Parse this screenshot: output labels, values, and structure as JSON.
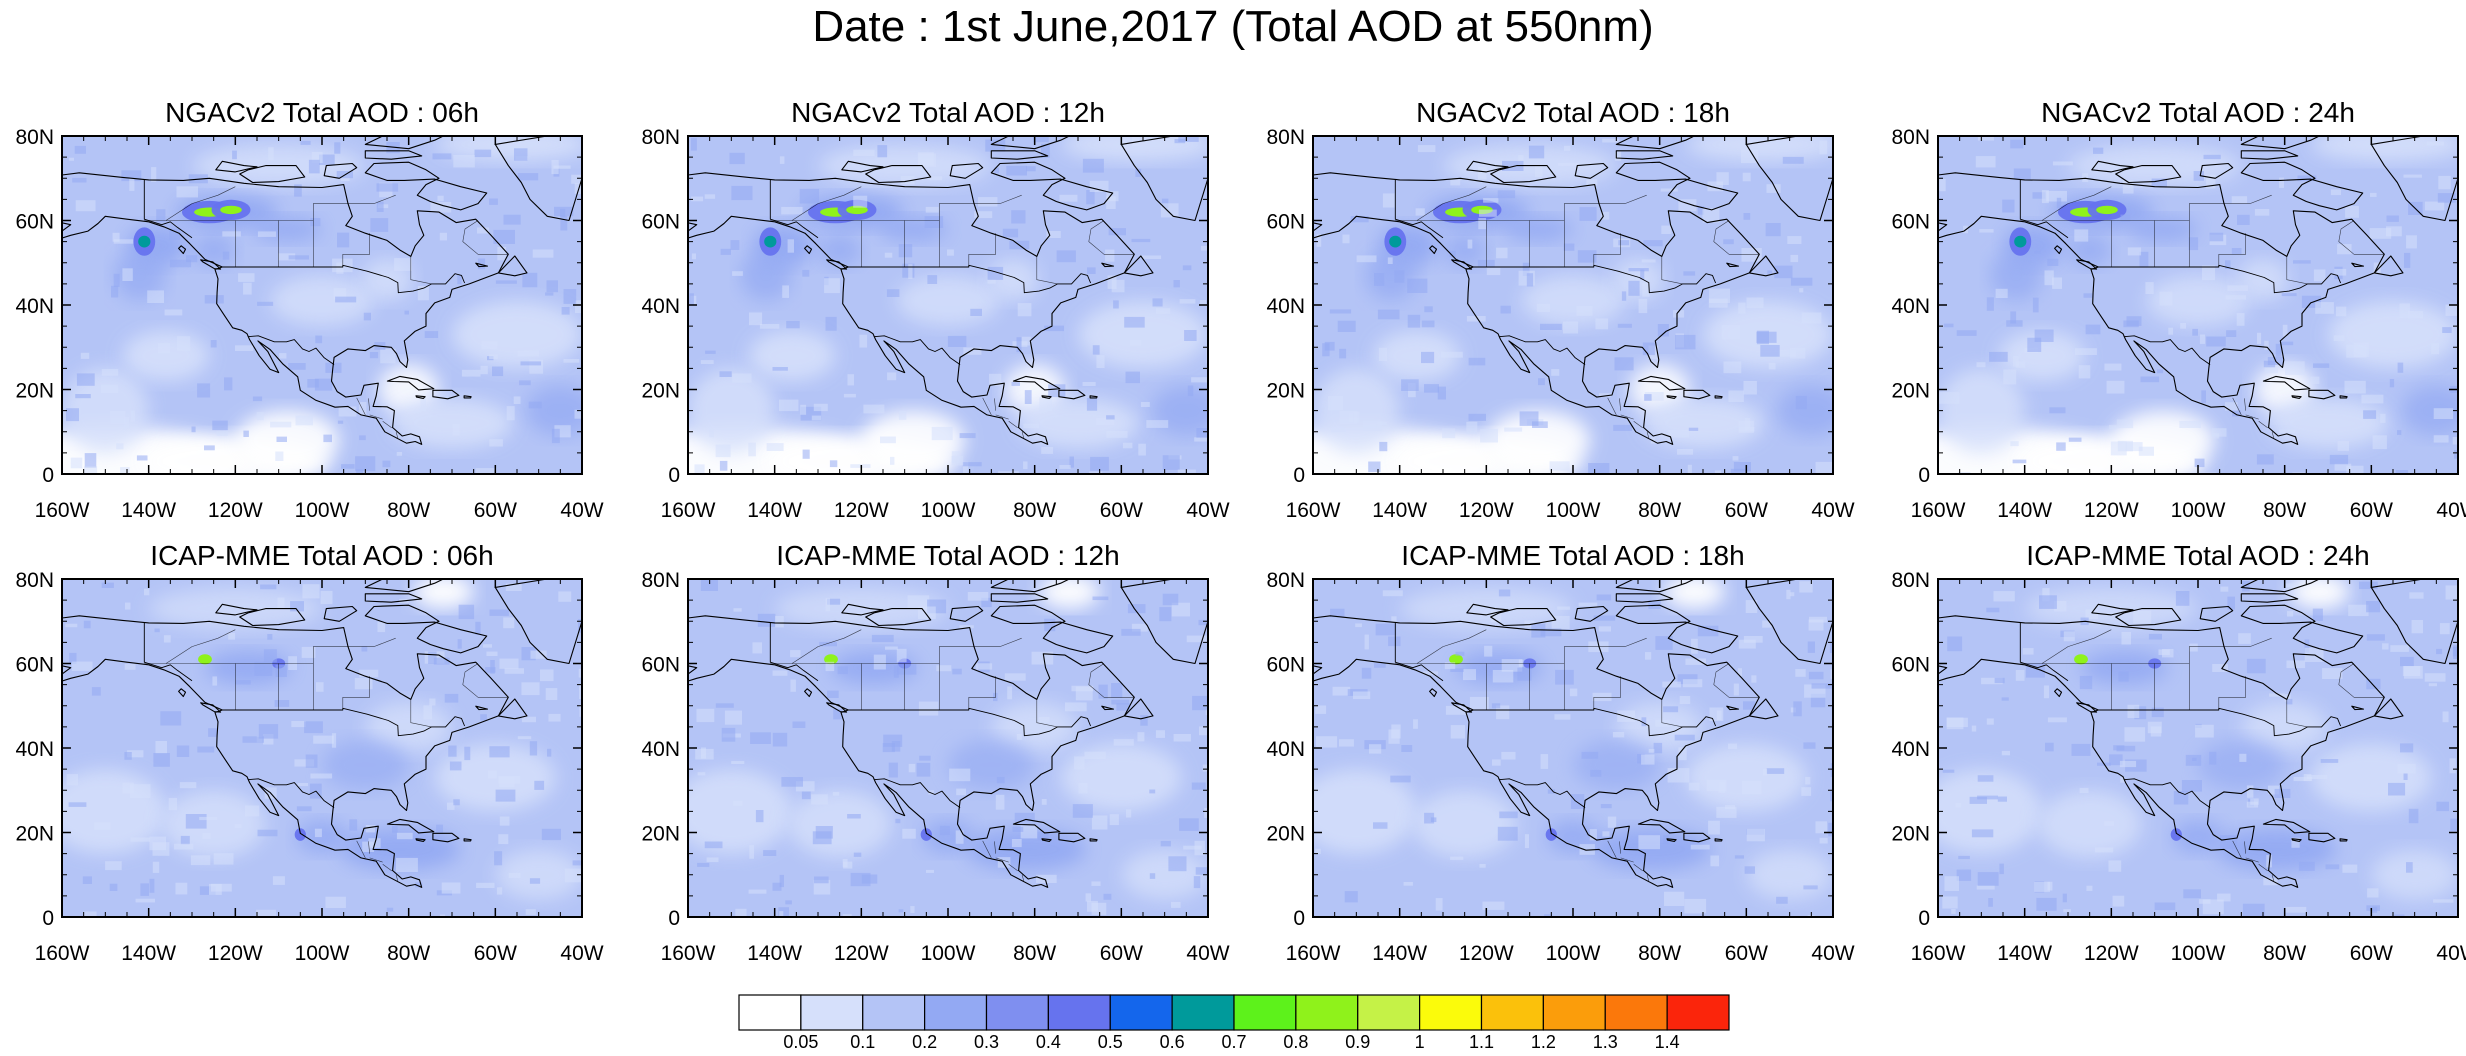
{
  "title": "Date : 1st June,2017 (Total AOD at 550nm)",
  "lat_labels": [
    "0",
    "20N",
    "40N",
    "60N",
    "80N"
  ],
  "lon_labels": [
    "160W",
    "140W",
    "120W",
    "100W",
    "80W",
    "60W",
    "40W"
  ],
  "panels": [
    {
      "title": "NGACv2 Total AOD : 06h"
    },
    {
      "title": "NGACv2 Total AOD : 12h"
    },
    {
      "title": "NGACv2 Total AOD : 18h"
    },
    {
      "title": "NGACv2 Total AOD : 24h"
    },
    {
      "title": "ICAP-MME Total AOD : 06h"
    },
    {
      "title": "ICAP-MME Total AOD : 12h"
    },
    {
      "title": "ICAP-MME Total AOD : 18h"
    },
    {
      "title": "ICAP-MME Total AOD : 24h"
    }
  ],
  "colorbar": {
    "labels": [
      "0.05",
      "0.1",
      "0.2",
      "0.3",
      "0.4",
      "0.5",
      "0.6",
      "0.7",
      "0.8",
      "0.9",
      "1",
      "1.1",
      "1.2",
      "1.3",
      "1.4"
    ],
    "colors": [
      "#ffffff",
      "#d6e0fb",
      "#b4c4f6",
      "#93a9f3",
      "#7f8ff0",
      "#6673ee",
      "#1466ec",
      "#009a9b",
      "#5df21b",
      "#8ff21b",
      "#c5f247",
      "#fbfb0b",
      "#fbc10b",
      "#fb9d0b",
      "#fb780b",
      "#fb250b"
    ]
  }
}
